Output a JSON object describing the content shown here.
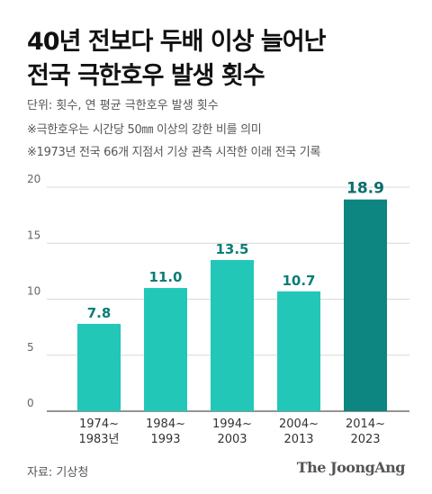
{
  "header": {
    "title_line1": "40년 전보다 두배 이상 늘어난",
    "title_line2": "전국 극한호우 발생 횟수",
    "unit": "단위: 횟수, 연 평균 극한호우 발생 횟수",
    "note1": "※극한호우는 시간당 50㎜ 이상의 강한 비를 의미",
    "note2": "※1973년 전국 66개 지점서 기상 관측 시작한 이래 전국 기록"
  },
  "footer": {
    "source": "자료: 기상청",
    "brand": "The JoongAng"
  },
  "colors": {
    "bar": "#22c7b8",
    "bar_highlight": "#0d8580",
    "label": "#0a7d78",
    "label_highlight": "#0a6e6a",
    "grid": "#d9d9d9",
    "axis": "#555555"
  },
  "chart_data": {
    "type": "bar",
    "categories": [
      [
        "1974~",
        "1983년"
      ],
      [
        "1984~",
        "1993"
      ],
      [
        "1994~",
        "2003"
      ],
      [
        "2004~",
        "2013"
      ],
      [
        "2014~",
        "2023"
      ]
    ],
    "values": [
      7.8,
      11.0,
      13.5,
      10.7,
      18.9
    ],
    "value_labels": [
      "7.8",
      "11.0",
      "13.5",
      "10.7",
      "18.9"
    ],
    "highlight_index": 4,
    "ylim": [
      0,
      20
    ],
    "yticks": [
      0,
      5,
      10,
      15,
      20
    ],
    "grid": true
  }
}
